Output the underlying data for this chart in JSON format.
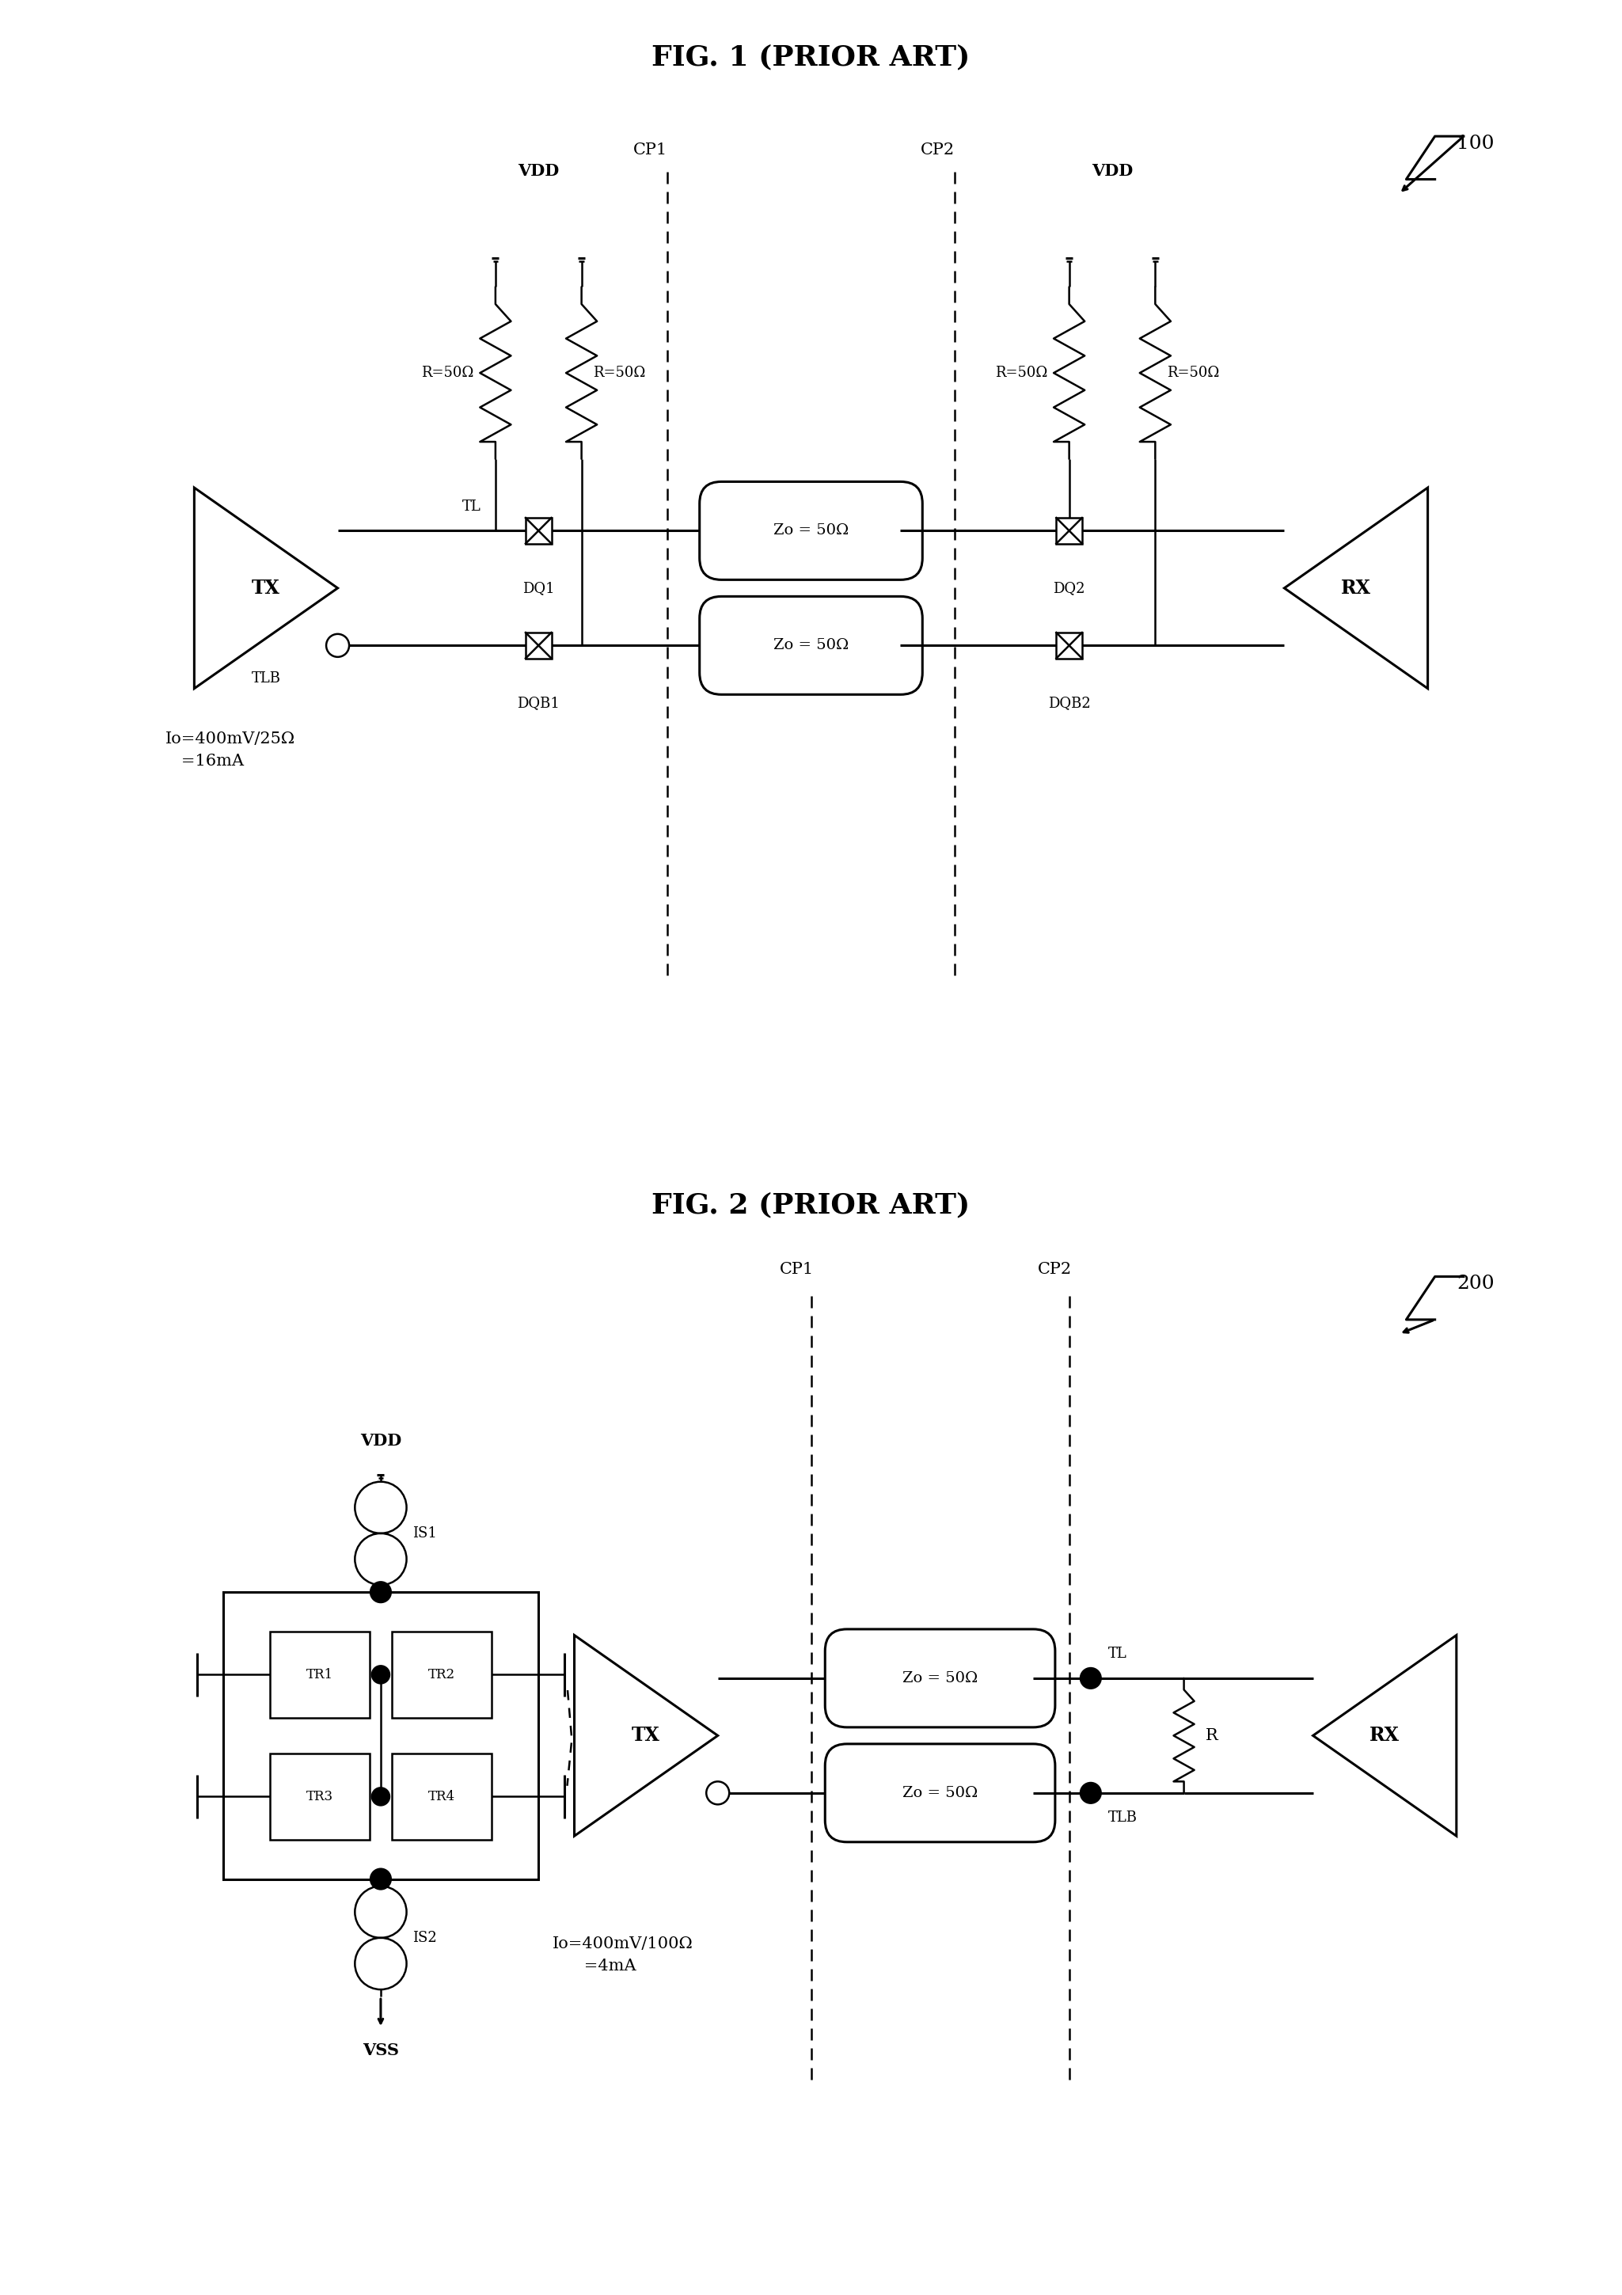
{
  "fig1_title": "FIG. 1 (PRIOR ART)",
  "fig2_title": "FIG. 2 (PRIOR ART)",
  "fig1_ref": "100",
  "fig2_ref": "200",
  "fig1_annotation": "Io=400mV/25Ω\n   =16mA",
  "fig2_annotation": "Io=400mV/100Ω\n      =4mA",
  "bg_color": "#ffffff",
  "line_color": "#000000",
  "lw": 1.8,
  "lw_thick": 2.2
}
